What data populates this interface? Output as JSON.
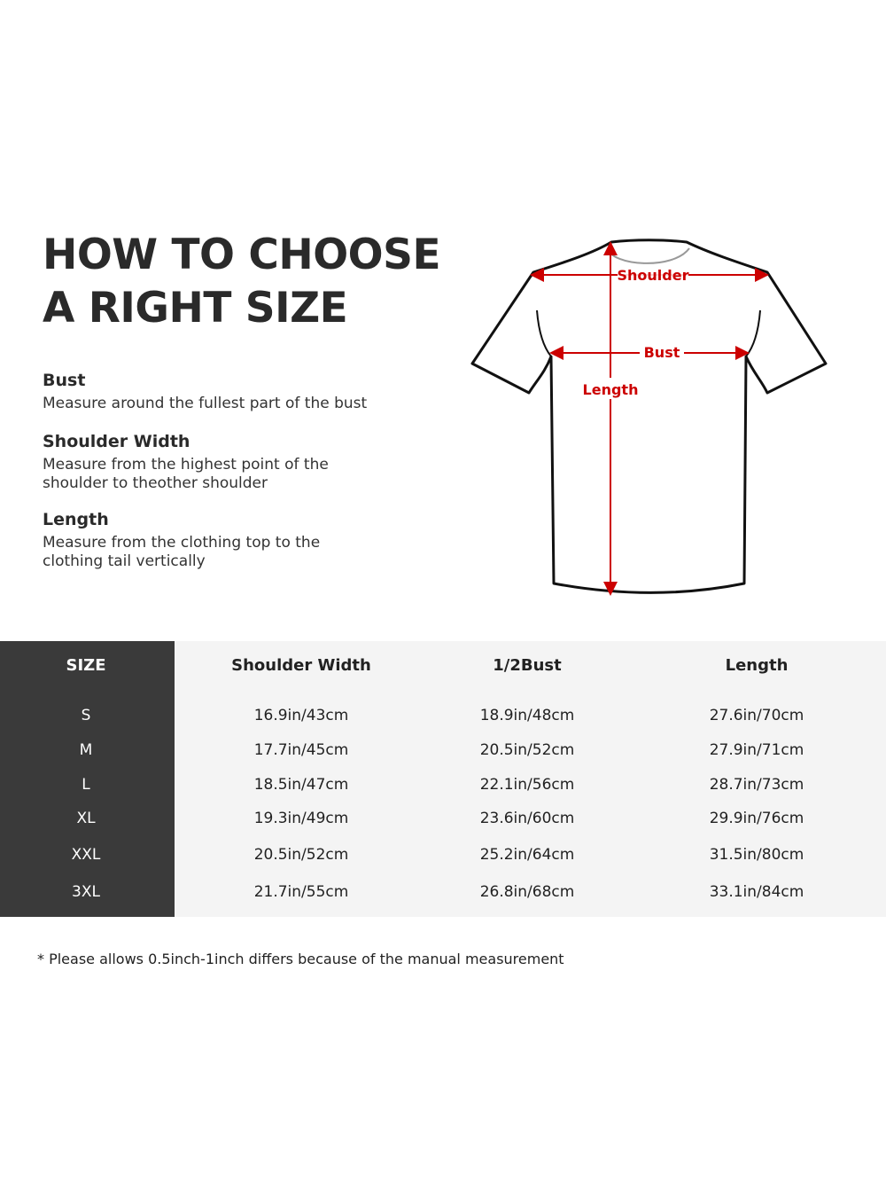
{
  "title_lines": [
    "HOW TO CHOOSE",
    "A RIGHT SIZE"
  ],
  "measurements": [
    {
      "heading": "Bust",
      "desc": [
        "Measure around the fullest part of the bust"
      ]
    },
    {
      "heading": "Shoulder Width",
      "desc": [
        "Measure from the highest point of the",
        "shoulder to theother shoulder"
      ]
    },
    {
      "heading": "Length",
      "desc": [
        "Measure from the clothing top to the",
        "clothing tail vertically"
      ]
    }
  ],
  "diagram": {
    "shoulder": "Shoulder",
    "bust": "Bust",
    "length": "Length",
    "arrow_color": "#cc0000"
  },
  "table": {
    "headers": [
      "SIZE",
      "Shoulder Width",
      "1/2Bust",
      "Length"
    ],
    "rows": [
      [
        "S",
        "16.9in/43cm",
        "18.9in/48cm",
        "27.6in/70cm"
      ],
      [
        "M",
        "17.7in/45cm",
        "20.5in/52cm",
        "27.9in/71cm"
      ],
      [
        "L",
        "18.5in/47cm",
        "22.1in/56cm",
        "28.7in/73cm"
      ],
      [
        "XL",
        "19.3in/49cm",
        "23.6in/60cm",
        "29.9in/76cm"
      ],
      [
        "XXL",
        "20.5in/52cm",
        "25.2in/64cm",
        "31.5in/80cm"
      ],
      [
        "3XL",
        "21.7in/55cm",
        "26.8in/68cm",
        "33.1in/84cm"
      ]
    ]
  },
  "note": "* Please allows 0.5inch-1inch differs because of the  manual measurement"
}
